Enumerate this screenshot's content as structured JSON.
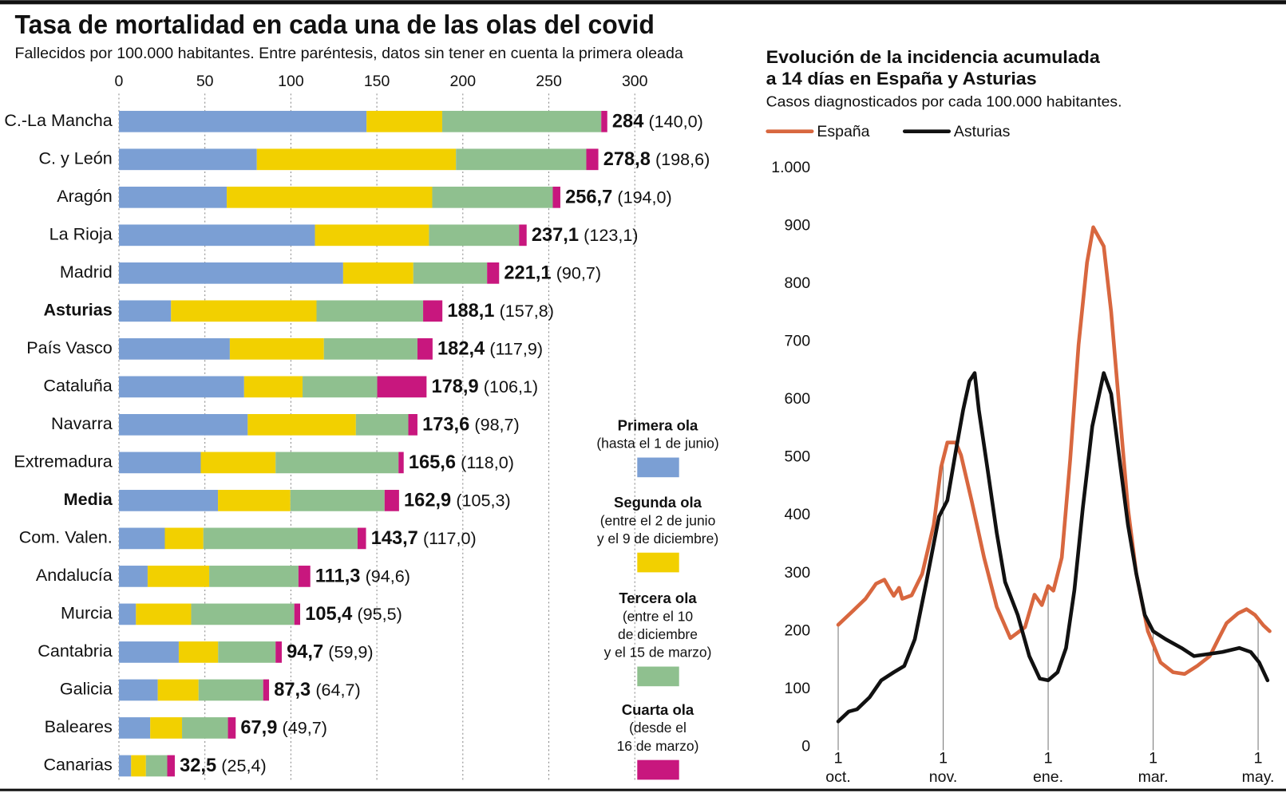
{
  "chart_data": [
    {
      "type": "stacked-barh",
      "title": "Tasa de mortalidad en cada una de las olas del covid",
      "subtitle": "Fallecidos por 100.000 habitantes. Entre paréntesis, datos sin tener en cuenta la primera oleada",
      "categories": [
        "C.-La Mancha",
        "C. y León",
        "Aragón",
        "La Rioja",
        "Madrid",
        "Asturias",
        "País Vasco",
        "Cataluña",
        "Navarra",
        "Extremadura",
        "Media",
        "Com. Valen.",
        "Andalucía",
        "Murcia",
        "Cantabria",
        "Galicia",
        "Baleares",
        "Canarias"
      ],
      "emphasis": [
        5,
        10
      ],
      "series": [
        {
          "name": "Primera ola",
          "description": [
            "(hasta el 1 de junio)"
          ],
          "color": "#7b9fd4",
          "values": [
            144,
            80.2,
            62.7,
            114,
            130.4,
            30.3,
            64.5,
            72.8,
            74.9,
            47.6,
            57.6,
            26.7,
            16.7,
            9.9,
            34.8,
            22.6,
            18.2,
            7.1
          ]
        },
        {
          "name": "Segunda ola",
          "description": [
            "(entre el 2 de junio",
            "y el 9 de diciembre)"
          ],
          "color": "#f2d000",
          "values": [
            44,
            115.8,
            119.5,
            66.3,
            40.8,
            84.6,
            54.7,
            34,
            62.9,
            43.5,
            42.1,
            22.4,
            35.8,
            32.1,
            22.9,
            23.7,
            18.5,
            8.6
          ]
        },
        {
          "name": "Tercera ola",
          "description": [
            "(entre el 10",
            "de diciembre",
            "y el 15 de marzo)"
          ],
          "color": "#8fc08f",
          "values": [
            92.5,
            75.8,
            70.1,
            52.4,
            42.9,
            62,
            54.4,
            43.4,
            30.5,
            71.5,
            54.8,
            89.7,
            51.9,
            60,
            33.4,
            37.6,
            26.7,
            12.4
          ]
        },
        {
          "name": "Cuarta ola",
          "description": [
            "(desde el",
            "16 de marzo)"
          ],
          "color": "#c8177e",
          "values": [
            3.5,
            7,
            4.4,
            4.4,
            7,
            11.2,
            8.8,
            28.7,
            5.3,
            3,
            8.4,
            4.9,
            6.9,
            3.4,
            3.6,
            3.4,
            4.5,
            4.4
          ]
        }
      ],
      "totals": [
        284,
        278.8,
        256.7,
        237.1,
        221.1,
        188.1,
        182.4,
        178.9,
        173.6,
        165.6,
        162.9,
        143.7,
        111.3,
        105.4,
        94.7,
        87.3,
        67.9,
        32.5
      ],
      "total_labels": [
        "284",
        "278,8",
        "256,7",
        "237,1",
        "221,1",
        "188,1",
        "182,4",
        "178,9",
        "173,6",
        "165,6",
        "162,9",
        "143,7",
        "111,3",
        "105,4",
        "94,7",
        "87,3",
        "67,9",
        "32,5"
      ],
      "excl_first_wave": {
        "values": [
          140,
          198.6,
          194,
          123.1,
          90.7,
          157.8,
          117.9,
          106.1,
          98.7,
          118,
          105.3,
          117,
          94.6,
          95.5,
          59.9,
          64.7,
          49.7,
          25.4
        ],
        "value_labels": [
          "(140,0)",
          "(198,6)",
          "(194,0)",
          "(123,1)",
          "(90,7)",
          "(157,8)",
          "(117,9)",
          "(106,1)",
          "(98,7)",
          "(118,0)",
          "(105,3)",
          "(117,0)",
          "(94,6)",
          "(95,5)",
          "(59,9)",
          "(64,7)",
          "(49,7)",
          "(25,4)"
        ]
      },
      "xlim": [
        0,
        300
      ],
      "xticks": [
        0,
        50,
        100,
        150,
        200,
        250,
        300
      ],
      "grid": true
    },
    {
      "type": "line",
      "title": [
        "Evolución de la incidencia acumulada",
        "a 14 días en España y Asturias"
      ],
      "subtitle": "Casos diagnosticados por cada 100.000 habitantes.",
      "series": [
        {
          "name": "España",
          "color": "#d8673f",
          "x": [
            0,
            0.14,
            0.26,
            0.36,
            0.44,
            0.49,
            0.53,
            0.58,
            0.61,
            0.7,
            0.8,
            0.91,
            0.98,
            1.04,
            1.12,
            1.17,
            1.27,
            1.39,
            1.51,
            1.64,
            1.78,
            1.87,
            1.94,
            2,
            2.05,
            2.13,
            2.21,
            2.29,
            2.37,
            2.43,
            2.53,
            2.6,
            2.68,
            2.76,
            2.84,
            2.95,
            3.07,
            3.19,
            3.3,
            3.42,
            3.54,
            3.62,
            3.7,
            3.81,
            3.89,
            3.97,
            4.05,
            4.11
          ],
          "values": [
            211,
            235,
            256,
            282,
            289,
            273,
            261,
            275,
            256,
            262,
            299,
            384,
            483,
            526,
            526,
            504,
            426,
            327,
            242,
            188,
            207,
            263,
            245,
            278,
            270,
            327,
            497,
            695,
            837,
            898,
            865,
            752,
            582,
            412,
            299,
            200,
            146,
            129,
            126,
            140,
            157,
            186,
            214,
            231,
            238,
            228,
            210,
            200
          ]
        },
        {
          "name": "Asturias",
          "color": "#111111",
          "x": [
            0,
            0.1,
            0.18,
            0.3,
            0.41,
            0.53,
            0.63,
            0.73,
            0.84,
            0.96,
            1.04,
            1.12,
            1.19,
            1.25,
            1.3,
            1.34,
            1.42,
            1.51,
            1.59,
            1.71,
            1.82,
            1.92,
            2,
            2.09,
            2.17,
            2.25,
            2.33,
            2.42,
            2.53,
            2.6,
            2.68,
            2.76,
            2.84,
            2.92,
            3,
            3.12,
            3.27,
            3.39,
            3.51,
            3.66,
            3.82,
            3.93,
            4.01,
            4.09
          ],
          "values": [
            44,
            61,
            65,
            86,
            115,
            129,
            140,
            186,
            285,
            398,
            426,
            511,
            582,
            632,
            646,
            582,
            483,
            370,
            285,
            228,
            157,
            118,
            115,
            129,
            171,
            271,
            412,
            554,
            646,
            610,
            497,
            384,
            299,
            228,
            200,
            186,
            171,
            157,
            160,
            164,
            171,
            164,
            146,
            115
          ]
        }
      ],
      "xlim": [
        0,
        4.2
      ],
      "xticks": [
        {
          "value": 0,
          "label": "1\noct."
        },
        {
          "value": 1,
          "label": "1\nnov."
        },
        {
          "value": 2,
          "label": "1\nene."
        },
        {
          "value": 3,
          "label": "1\nmar."
        },
        {
          "value": 4,
          "label": "1\nmay."
        }
      ],
      "ylim": [
        0,
        1000
      ],
      "yticks": [
        0,
        100,
        200,
        300,
        400,
        500,
        600,
        700,
        800,
        900,
        {
          "value": 1000,
          "label": "1.000"
        }
      ]
    }
  ]
}
